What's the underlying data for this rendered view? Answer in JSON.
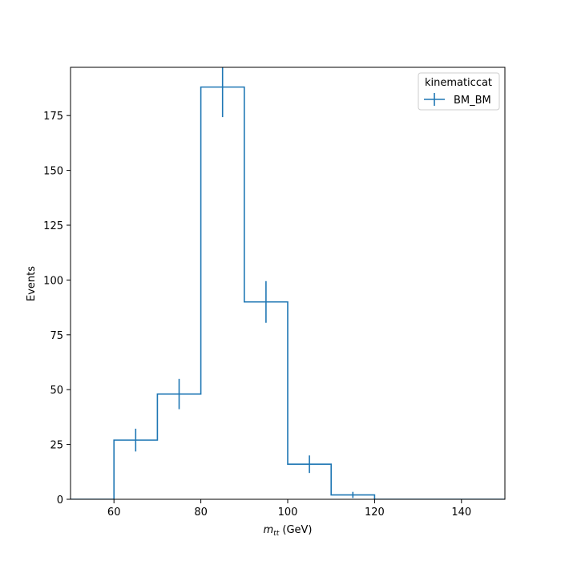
{
  "chart_data": {
    "type": "histogram-step",
    "xlabel_main": "m",
    "xlabel_sub": "tt",
    "xlabel_unit": " (GeV)",
    "ylabel": "Events",
    "xlim": [
      50,
      150
    ],
    "ylim": [
      0,
      197
    ],
    "xticks": [
      60,
      80,
      100,
      120,
      140
    ],
    "yticks": [
      0,
      25,
      50,
      75,
      100,
      125,
      150,
      175
    ],
    "bin_edges": [
      50,
      60,
      70,
      80,
      90,
      100,
      110,
      120,
      130,
      140,
      150
    ],
    "series": [
      {
        "name": "BM_BM",
        "color": "#1f77b4",
        "values": [
          0,
          27,
          48,
          188,
          90,
          16,
          2,
          0,
          0,
          0
        ],
        "errors": [
          0,
          5.2,
          6.9,
          13.7,
          9.5,
          4.0,
          1.4,
          0,
          0,
          0
        ]
      }
    ],
    "legend": {
      "title": "kinematiccat",
      "placement": "top-right"
    },
    "grid": false
  }
}
